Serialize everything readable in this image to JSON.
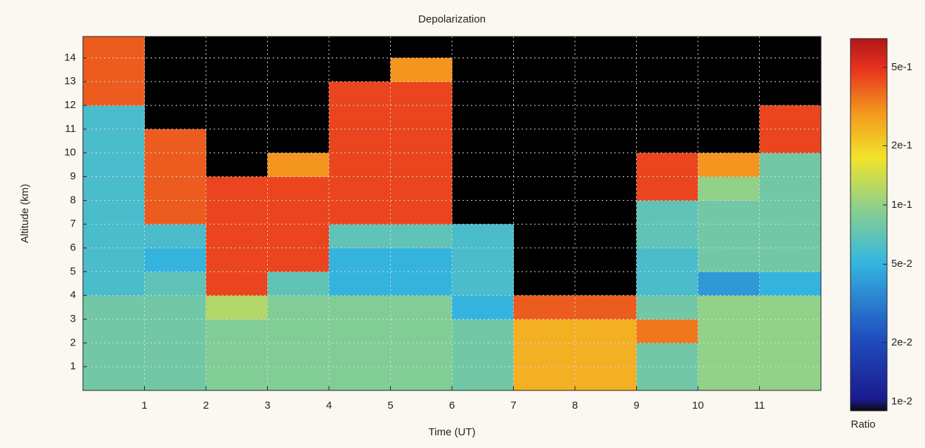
{
  "chart_data": {
    "type": "heatmap",
    "title": "Depolarization",
    "x_label": "Time (UT)",
    "y_label": "Altitude (km)",
    "x": [
      0,
      1,
      2,
      3,
      4,
      5,
      6,
      7,
      8,
      9,
      10,
      11,
      12
    ],
    "y": [
      0,
      1,
      2,
      3,
      4,
      5,
      6,
      7,
      8,
      9,
      10,
      11,
      12,
      13,
      14,
      15
    ],
    "z": [
      [
        0.08,
        0.08,
        0.09,
        0.09,
        0.09,
        0.09,
        0.08,
        0.25,
        0.25,
        0.08,
        0.1,
        0.1
      ],
      [
        0.08,
        0.08,
        0.09,
        0.09,
        0.09,
        0.09,
        0.08,
        0.25,
        0.25,
        0.08,
        0.1,
        0.1
      ],
      [
        0.08,
        0.08,
        0.09,
        0.09,
        0.09,
        0.09,
        0.08,
        0.25,
        0.25,
        0.35,
        0.1,
        0.1
      ],
      [
        0.08,
        0.08,
        0.12,
        0.09,
        0.09,
        0.09,
        0.05,
        0.4,
        0.4,
        0.08,
        0.1,
        0.1
      ],
      [
        0.06,
        0.07,
        0.45,
        0.07,
        0.05,
        0.05,
        0.06,
        null,
        null,
        0.06,
        0.04,
        0.05
      ],
      [
        0.06,
        0.05,
        0.45,
        0.45,
        0.05,
        0.05,
        0.06,
        null,
        null,
        0.06,
        0.08,
        0.08
      ],
      [
        0.06,
        0.06,
        0.45,
        0.45,
        0.07,
        0.07,
        0.06,
        null,
        null,
        0.07,
        0.08,
        0.08
      ],
      [
        0.06,
        0.4,
        0.45,
        0.45,
        0.45,
        0.45,
        null,
        null,
        null,
        0.07,
        0.08,
        0.08
      ],
      [
        0.06,
        0.4,
        0.45,
        0.45,
        0.45,
        0.45,
        null,
        null,
        null,
        0.45,
        0.1,
        0.08
      ],
      [
        0.06,
        0.4,
        null,
        0.3,
        0.45,
        0.45,
        null,
        null,
        null,
        0.45,
        0.3,
        0.08
      ],
      [
        0.06,
        0.4,
        null,
        null,
        0.45,
        0.45,
        null,
        null,
        null,
        null,
        null,
        0.45
      ],
      [
        0.06,
        null,
        null,
        null,
        0.45,
        0.45,
        null,
        null,
        null,
        null,
        null,
        0.45
      ],
      [
        0.4,
        null,
        null,
        null,
        0.45,
        0.45,
        null,
        null,
        null,
        null,
        null,
        null
      ],
      [
        0.4,
        null,
        null,
        null,
        null,
        0.3,
        null,
        null,
        null,
        null,
        null,
        null
      ],
      [
        0.4,
        null,
        null,
        null,
        null,
        null,
        null,
        null,
        null,
        null,
        null,
        null
      ]
    ],
    "xlim": [
      0,
      12
    ],
    "ylim": [
      0,
      14.9
    ],
    "xticks": [
      1,
      2,
      3,
      4,
      5,
      6,
      7,
      8,
      9,
      10,
      11
    ],
    "yticks": [
      1,
      2,
      3,
      4,
      5,
      6,
      7,
      8,
      9,
      10,
      11,
      12,
      13,
      14
    ],
    "grid": true,
    "colorbar": {
      "label": "Ratio",
      "log_scale": true,
      "clim": [
        0.009,
        0.7
      ],
      "ticks": [
        {
          "value": 0.01,
          "label": "1e-2"
        },
        {
          "value": 0.02,
          "label": "2e-2"
        },
        {
          "value": 0.05,
          "label": "5e-2"
        },
        {
          "value": 0.1,
          "label": "1e-1"
        },
        {
          "value": 0.2,
          "label": "2e-1"
        },
        {
          "value": 0.5,
          "label": "5e-1"
        }
      ]
    }
  }
}
